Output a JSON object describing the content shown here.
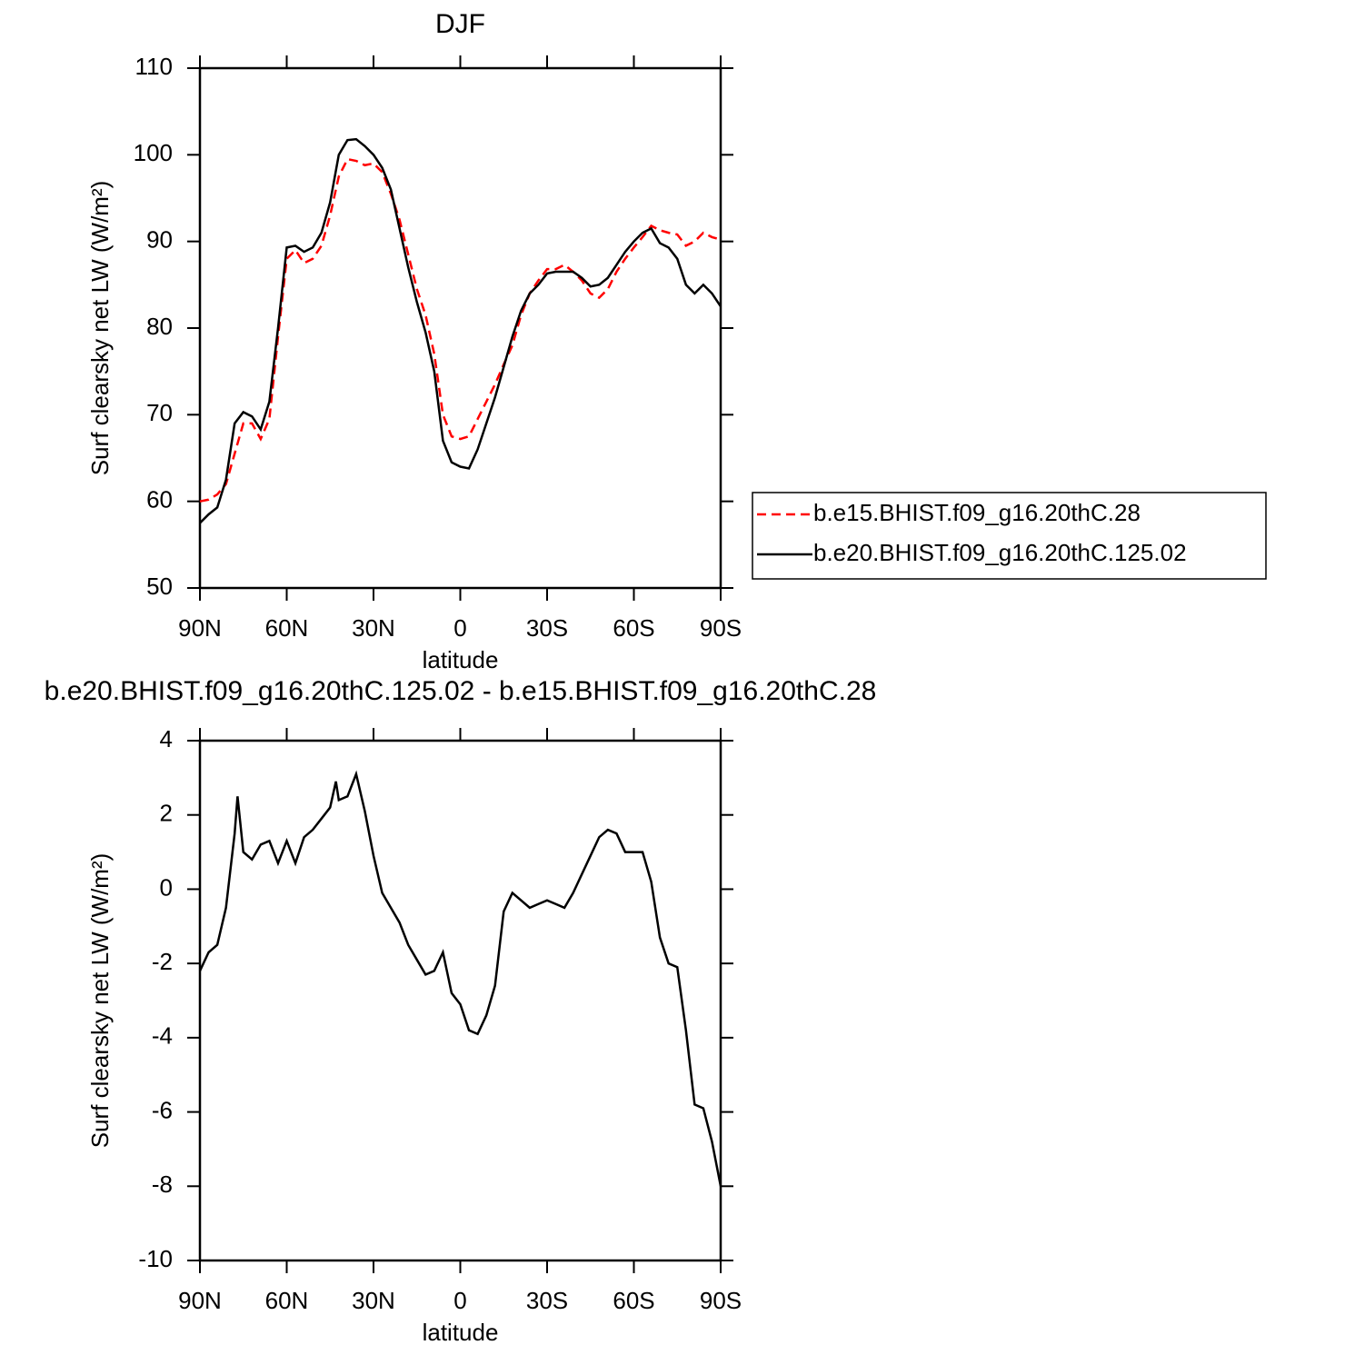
{
  "chart_data": [
    {
      "type": "line",
      "title": "DJF",
      "xlabel": "latitude",
      "ylabel": "Surf clearsky net LW (W/m²)",
      "x": [
        90,
        87,
        84,
        81,
        78,
        75,
        72,
        69,
        66,
        63,
        60,
        57,
        54,
        51,
        48,
        45,
        42,
        39,
        36,
        33,
        30,
        27,
        24,
        21,
        18,
        15,
        12,
        9,
        6,
        3,
        0,
        -3,
        -6,
        -9,
        -12,
        -15,
        -18,
        -21,
        -24,
        -27,
        -30,
        -33,
        -36,
        -39,
        -42,
        -45,
        -48,
        -51,
        -54,
        -57,
        -60,
        -63,
        -66,
        -69,
        -72,
        -75,
        -78,
        -81,
        -84,
        -87,
        -90
      ],
      "series": [
        {
          "name": "b.e15.BHIST.f09_g16.20thC.28",
          "color": "#ff0000",
          "line_style": "dashed",
          "values": [
            60,
            60.2,
            60.8,
            62,
            65.5,
            69,
            69,
            67.2,
            69.5,
            79,
            88,
            89,
            87.5,
            88,
            89.5,
            93,
            97.5,
            99.5,
            99.3,
            98.8,
            99,
            98,
            95.5,
            92.5,
            88.5,
            84.5,
            81.5,
            77,
            70,
            67.5,
            67.2,
            67.5,
            69.5,
            71.5,
            73.5,
            75.8,
            78,
            81.5,
            84,
            85.5,
            86.8,
            86.8,
            87.3,
            86.5,
            85.5,
            84,
            83.5,
            84.5,
            86.5,
            88,
            89.3,
            90.5,
            91.8,
            91.3,
            91,
            90.8,
            89.5,
            90,
            91,
            90.5,
            90.2
          ]
        },
        {
          "name": "b.e20.BHIST.f09_g16.20thC.125.02",
          "color": "#000000",
          "line_style": "solid",
          "values": [
            57.5,
            58.5,
            59.3,
            62.5,
            69,
            70.3,
            69.8,
            68.3,
            71.5,
            80,
            89.3,
            89.5,
            88.8,
            89.3,
            91,
            94.5,
            100,
            101.7,
            101.8,
            101,
            100,
            98.5,
            96,
            91.5,
            87,
            83,
            79.5,
            75,
            67,
            64.5,
            64,
            63.8,
            66,
            69,
            72,
            75.5,
            79,
            82,
            84,
            85,
            86.3,
            86.5,
            86.5,
            86.5,
            85.8,
            84.8,
            85,
            85.8,
            87.3,
            88.8,
            90,
            91,
            91.5,
            89.8,
            89.3,
            88,
            85,
            84,
            85,
            84,
            82.5
          ]
        }
      ],
      "xlim": [
        90,
        -90
      ],
      "xticks": [
        {
          "value": 90,
          "label": "90N"
        },
        {
          "value": 60,
          "label": "60N"
        },
        {
          "value": 30,
          "label": "30N"
        },
        0,
        {
          "value": -30,
          "label": "30S"
        },
        {
          "value": -60,
          "label": "60S"
        },
        {
          "value": -90,
          "label": "90S"
        }
      ],
      "ylim": [
        50,
        110
      ],
      "yticks": [
        50,
        60,
        70,
        80,
        90,
        100,
        110
      ],
      "legend": "outside right"
    },
    {
      "type": "line",
      "title": "b.e20.BHIST.f09_g16.20thC.125.02 - b.e15.BHIST.f09_g16.20thC.28",
      "xlabel": "latitude",
      "ylabel": "Surf clearsky net LW (W/m²)",
      "x": [
        90,
        87,
        84,
        81,
        78,
        77,
        75,
        72,
        69,
        66,
        63,
        60,
        57,
        54,
        51,
        48,
        45,
        43,
        42,
        39,
        36,
        33,
        30,
        27,
        24,
        21,
        18,
        15,
        12,
        9,
        6,
        3,
        0,
        -3,
        -6,
        -9,
        -12,
        -15,
        -18,
        -21,
        -24,
        -27,
        -30,
        -33,
        -36,
        -39,
        -42,
        -45,
        -48,
        -51,
        -54,
        -57,
        -60,
        -63,
        -66,
        -69,
        -72,
        -75,
        -78,
        -81,
        -84,
        -87,
        -90
      ],
      "series": [
        {
          "color": "#000000",
          "line_style": "solid",
          "values": [
            -2.2,
            -1.7,
            -1.5,
            -0.5,
            1.5,
            2.5,
            1.0,
            0.8,
            1.2,
            1.3,
            0.7,
            1.3,
            0.7,
            1.4,
            1.6,
            1.9,
            2.2,
            2.9,
            2.4,
            2.5,
            3.1,
            2.1,
            0.9,
            -0.1,
            -0.5,
            -0.9,
            -1.5,
            -1.9,
            -2.3,
            -2.2,
            -1.7,
            -2.8,
            -3.1,
            -3.8,
            -3.9,
            -3.4,
            -2.6,
            -0.6,
            -0.1,
            -0.3,
            -0.5,
            -0.4,
            -0.3,
            -0.4,
            -0.5,
            -0.1,
            0.4,
            0.9,
            1.4,
            1.6,
            1.5,
            1.0,
            1.0,
            1.0,
            0.2,
            -1.3,
            -2.0,
            -2.1,
            -3.8,
            -5.8,
            -5.9,
            -6.8,
            -8.0
          ]
        }
      ],
      "xlim": [
        90,
        -90
      ],
      "xticks": [
        {
          "value": 90,
          "label": "90N"
        },
        {
          "value": 60,
          "label": "60N"
        },
        {
          "value": 30,
          "label": "30N"
        },
        0,
        {
          "value": -30,
          "label": "30S"
        },
        {
          "value": -60,
          "label": "60S"
        },
        {
          "value": -90,
          "label": "90S"
        }
      ],
      "ylim": [
        -10,
        4
      ],
      "yticks": [
        -10,
        -8,
        -6,
        -4,
        -2,
        0,
        2,
        4
      ]
    }
  ]
}
